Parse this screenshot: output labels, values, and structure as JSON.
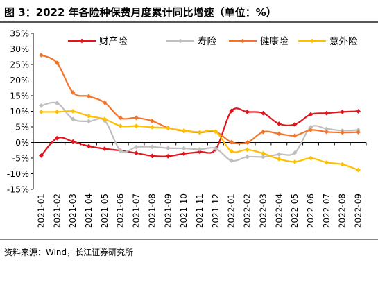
{
  "header": {
    "title": "图 3：2022 年各险种保费月度累计同比增速（单位：%）"
  },
  "footer": {
    "source": "资料来源：Wind，长江证券研究所"
  },
  "chart_data": {
    "type": "line",
    "title": "2022 年各险种保费月度累计同比增速（单位：%）",
    "xlabel": "",
    "ylabel": "",
    "ylim": [
      -15,
      35
    ],
    "yticks": [
      35,
      30,
      25,
      20,
      15,
      10,
      5,
      0,
      -5,
      -10,
      -15
    ],
    "yticks_labels": [
      "35%",
      "30%",
      "25%",
      "20%",
      "15%",
      "10%",
      "5%",
      "0%",
      "-5%",
      "-10%",
      "-15%"
    ],
    "grid": false,
    "legend_position": "top",
    "x": [
      "2021-01",
      "2021-02",
      "2021-03",
      "2021-04",
      "2021-05",
      "2021-06",
      "2021-07",
      "2021-08",
      "2021-09",
      "2021-10",
      "2021-11",
      "2021-12",
      "2022-01",
      "2022-02",
      "2022-03",
      "2022-04",
      "2022-05",
      "2022-06",
      "2022-07",
      "2022-08",
      "2022-09"
    ],
    "x_tick_labels": [
      "2021-01",
      "2021-02",
      "2021-03",
      "2021-04",
      "2021-05",
      "2021-06",
      "2021-07",
      "2021-08",
      "2021-09",
      "2021-10",
      "2021-11",
      "2021-12",
      "2022-01",
      "2022-02",
      "2022-03",
      "2022-04",
      "2022-05",
      "2022-06",
      "2022-07",
      "2022-08",
      "2022-09"
    ],
    "series": [
      {
        "name": "财产险",
        "color": "#e3141b",
        "values": [
          -4.2,
          1.4,
          0.3,
          -1.2,
          -2.0,
          -2.6,
          -3.4,
          -4.3,
          -4.4,
          -3.6,
          -3.0,
          -2.2,
          10.1,
          9.8,
          9.4,
          6.0,
          5.8,
          9.0,
          9.4,
          9.8,
          10.0
        ]
      },
      {
        "name": "寿险",
        "color": "#bfbfbf",
        "values": [
          11.8,
          12.6,
          7.5,
          6.8,
          7.0,
          -2.6,
          -1.5,
          -1.4,
          -1.8,
          -1.9,
          -2.2,
          -1.9,
          -5.8,
          -4.6,
          -4.6,
          -3.8,
          -3.3,
          4.9,
          4.4,
          3.8,
          4.0
        ]
      },
      {
        "name": "健康险",
        "color": "#f4752a",
        "values": [
          28.0,
          25.5,
          16.0,
          14.8,
          12.8,
          7.9,
          7.9,
          6.9,
          4.7,
          3.7,
          3.2,
          3.5,
          0.1,
          0.0,
          3.4,
          2.8,
          2.2,
          4.0,
          3.4,
          3.2,
          3.3
        ]
      },
      {
        "name": "意外险",
        "color": "#ffc000",
        "values": [
          9.8,
          9.8,
          10.0,
          8.5,
          7.5,
          5.3,
          5.3,
          4.9,
          4.6,
          3.8,
          3.3,
          3.5,
          -2.8,
          -2.3,
          -3.5,
          -5.3,
          -6.2,
          -5.0,
          -6.4,
          -7.0,
          -8.8
        ]
      }
    ]
  }
}
